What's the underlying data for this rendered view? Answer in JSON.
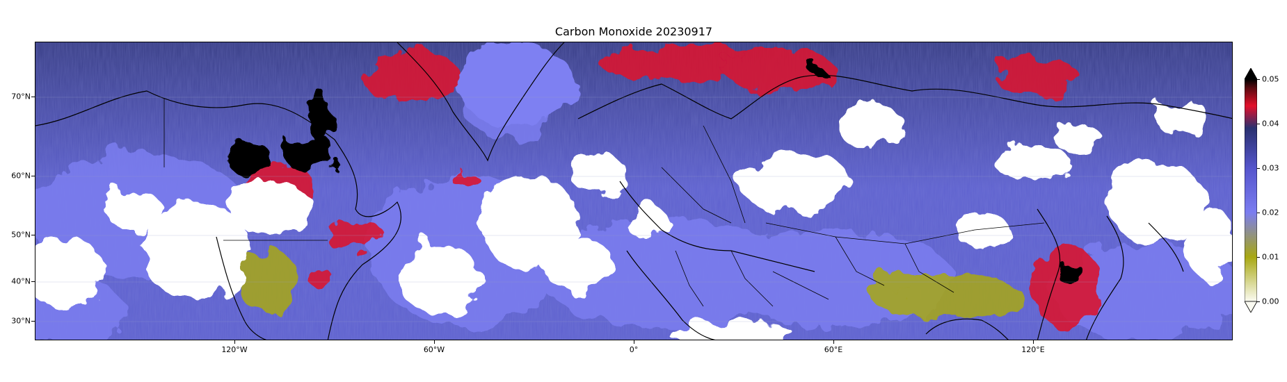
{
  "title": "Carbon Monoxide 20230917",
  "map": {
    "projection": "equirectangular",
    "lon_range": [
      -170,
      190
    ],
    "lat_range": [
      26,
      82
    ],
    "lat_labels": [
      "70°N",
      "60°N",
      "50°N",
      "40°N",
      "30°N"
    ],
    "lon_labels": [
      "120°W",
      "60°W",
      "0°",
      "60°E",
      "120°E"
    ]
  },
  "colorbar": {
    "tick_labels": [
      "0.05",
      "0.04",
      "0.03",
      "0.02",
      "0.01",
      "0.00"
    ],
    "colors": {
      "low": "#fbfbf2",
      "yellow": "#a8a812",
      "light_blue": "#7b7df0",
      "mid_blue": "#5555cc",
      "dark_blue": "#2a3170",
      "red": "#e3102a",
      "black": "#000000"
    },
    "extend": "both"
  },
  "colors": {
    "background_field": "#5c5fd0",
    "cloud_gap": "#ffffff"
  }
}
